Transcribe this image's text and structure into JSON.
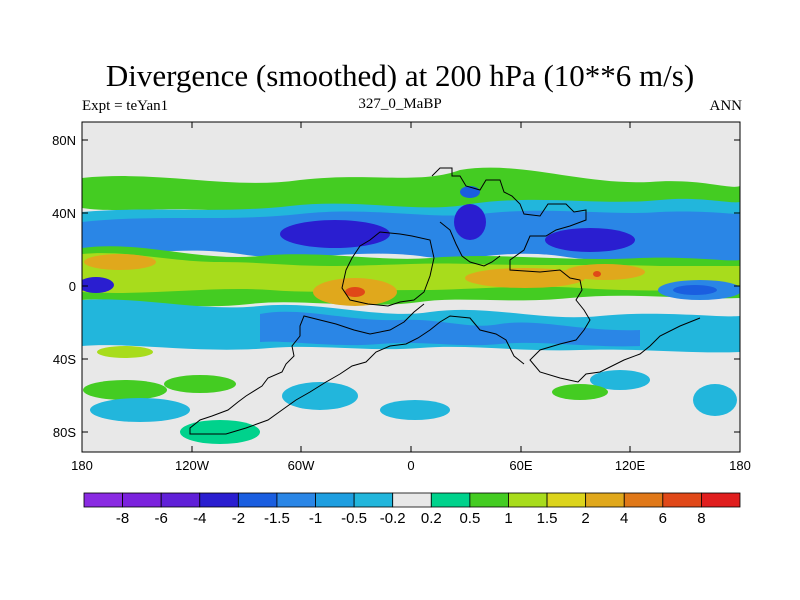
{
  "title": "Divergence (smoothed) at 200 hPa (10**6 m/s)",
  "subtitle_left": "Expt = teYan1",
  "subtitle_center": "327_0_MaBP",
  "subtitle_right": "ANN",
  "lat_labels": [
    "80N",
    "40N",
    "0",
    "40S",
    "80S"
  ],
  "lon_labels": [
    "180",
    "120W",
    "60W",
    "0",
    "60E",
    "120E",
    "180"
  ],
  "colorbar": {
    "colors": [
      "#8a2be2",
      "#7b22dd",
      "#6020d8",
      "#2a1ed0",
      "#1a5ee0",
      "#2a86e6",
      "#1e9ee0",
      "#22b6dc",
      "#e8e8e8",
      "#00d28c",
      "#44cc22",
      "#a8dc1c",
      "#dcd41c",
      "#e0a81c",
      "#e07818",
      "#e04818",
      "#e01e1e"
    ],
    "labels": [
      "-8",
      "-6",
      "-4",
      "-2",
      "-1.5",
      "-1",
      "-0.5",
      "-0.2",
      "0.2",
      "0.5",
      "1",
      "1.5",
      "2",
      "4",
      "6",
      "8"
    ]
  },
  "map": {
    "background": "#e8e8e8",
    "field": "divergence at 200 hPa, shaded by level",
    "coastline": "paleogeographic continent outlines (327 Ma)"
  }
}
